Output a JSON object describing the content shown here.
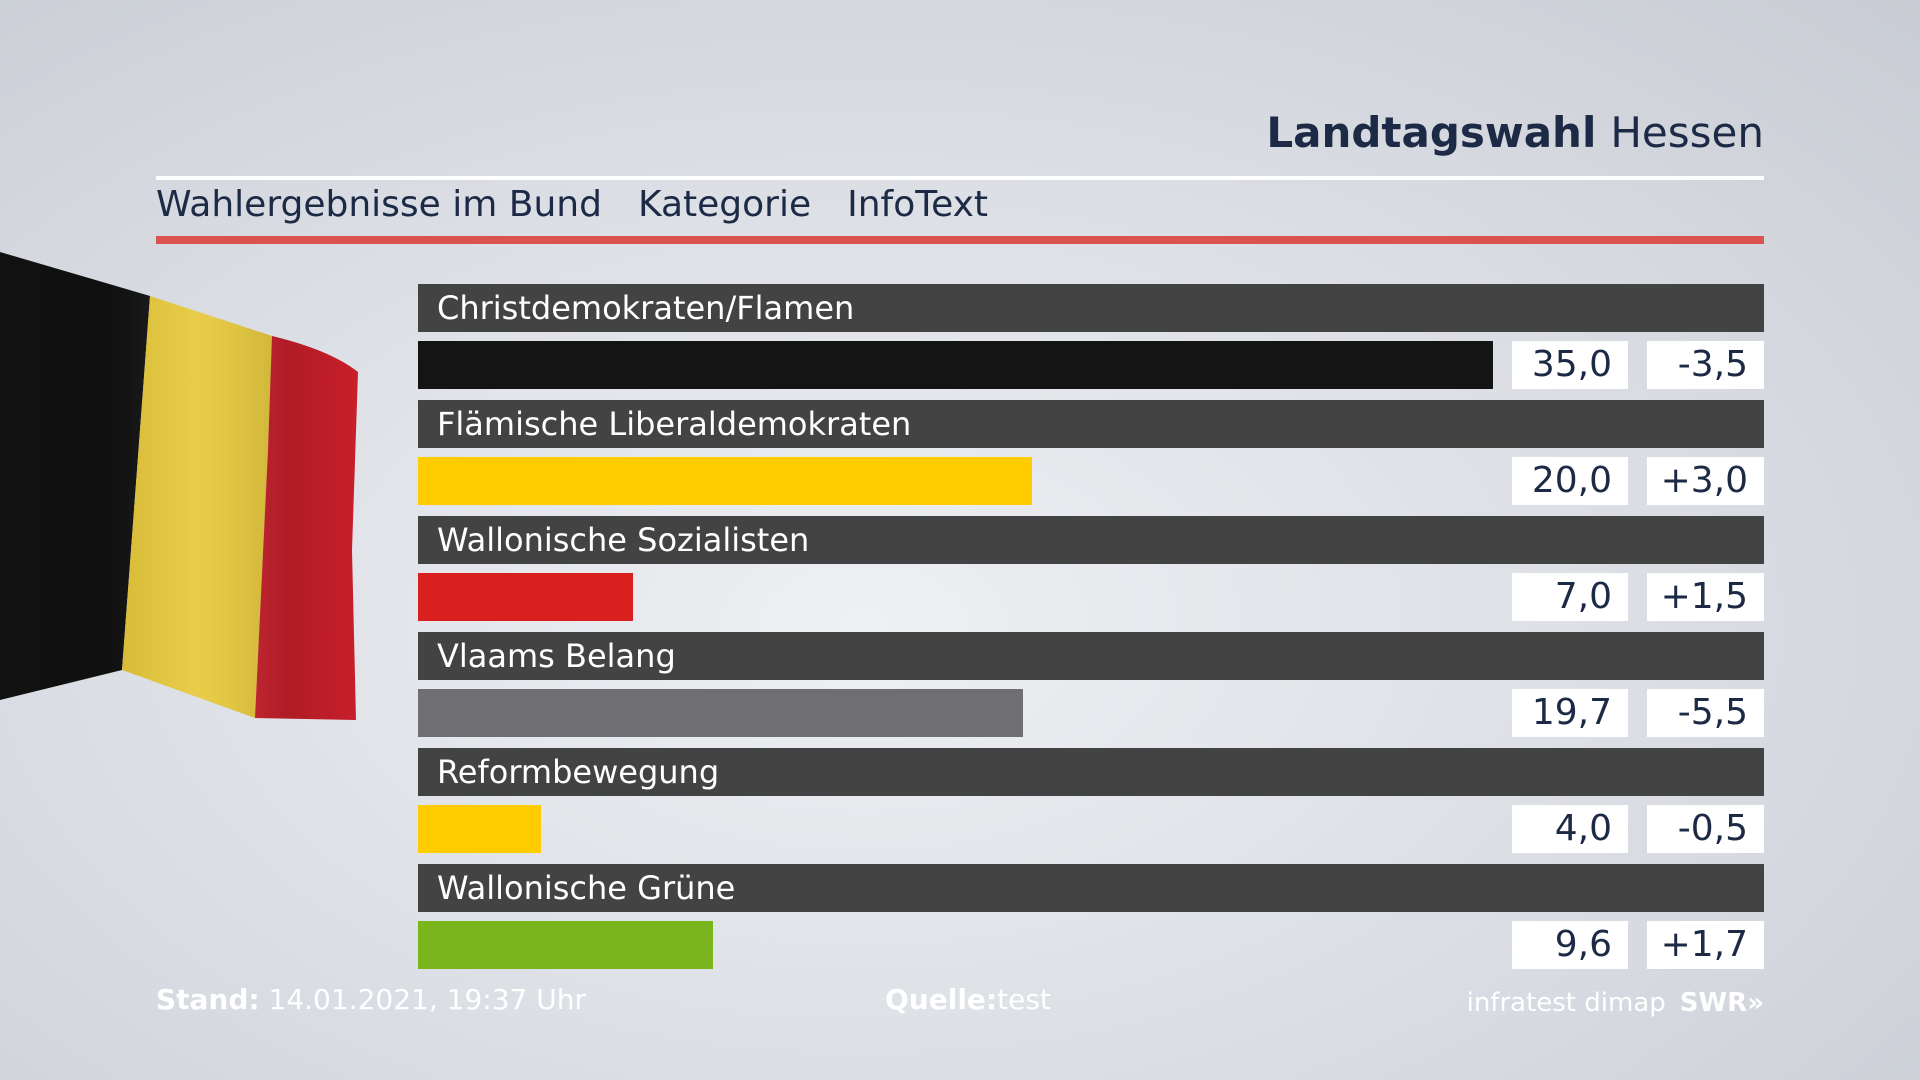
{
  "header": {
    "title_main": "Landtagswahl",
    "title_sub": "Hessen",
    "tabs": [
      "Wahlergebnisse im Bund",
      "Kategorie",
      "InfoText"
    ]
  },
  "chart_data": {
    "type": "bar",
    "orientation": "horizontal",
    "categories": [
      "Christdemokraten/Flamen",
      "Flämische Liberaldemokraten",
      "Wallonische Sozialisten",
      "Vlaams Belang",
      "Reformbewegung",
      "Wallonische Grüne"
    ],
    "values": [
      35.0,
      20.0,
      7.0,
      19.7,
      4.0,
      9.6
    ],
    "value_labels": [
      "35,0",
      "20,0",
      "7,0",
      "19,7",
      "4,0",
      "9,6"
    ],
    "changes": [
      -3.5,
      3.0,
      1.5,
      -5.5,
      -0.5,
      1.7
    ],
    "change_labels": [
      "-3,5",
      "+3,0",
      "+1,5",
      "-5,5",
      "-0,5",
      "+1,7"
    ],
    "colors": [
      "#141414",
      "#ffcc00",
      "#d9201e",
      "#6f6f71",
      "#ffcc00",
      "#7ab51d"
    ],
    "xlim": [
      0,
      35.0
    ],
    "grid": false,
    "legend": "none"
  },
  "footer": {
    "stand_label": "Stand:",
    "stand_value": "14.01.2021, 19:37 Uhr",
    "quelle_label": "Quelle:",
    "quelle_value": "test",
    "logo_infratest": "infratest dimap",
    "logo_swr": "SWR»"
  },
  "icons": [
    "belgium-flag-icon"
  ]
}
